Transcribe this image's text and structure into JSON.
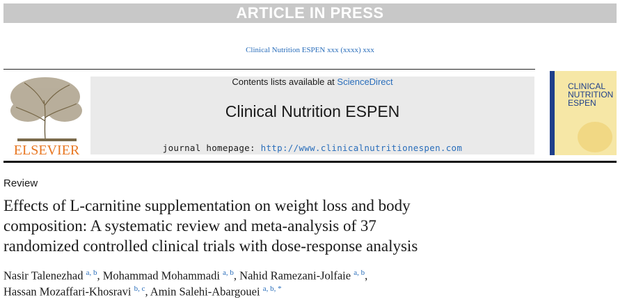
{
  "banner": "ARTICLE IN PRESS",
  "journal_ref": "Clinical Nutrition ESPEN xxx (xxxx) xxx",
  "masthead": {
    "contents_prefix": "Contents lists available at",
    "contents_link": "ScienceDirect",
    "journal_name": "Clinical Nutrition ESPEN",
    "homepage_prefix": "journal homepage:",
    "homepage_url": "http://www.clinicalnutritionespen.com",
    "publisher": "ELSEVIER",
    "cover_title": [
      "CLINICAL",
      "NUTRITION",
      "ESPEN"
    ]
  },
  "article": {
    "type": "Review",
    "title_lines": [
      "Effects of L-carnitine supplementation on weight loss and body",
      "composition: A systematic review and meta-analysis of 37",
      "randomized controlled clinical trials with dose-response analysis"
    ],
    "author_lines": [
      [
        {
          "name": "Nasir Talenezhad",
          "affiliations": "a, b",
          "separator": ","
        },
        {
          "name": "Mohammad Mohammadi",
          "affiliations": "a, b",
          "separator": ","
        },
        {
          "name": "Nahid Ramezani-Jolfaie",
          "affiliations": "a, b",
          "separator": ","
        }
      ],
      [
        {
          "name": "Hassan Mozaffari-Khosravi",
          "affiliations": "b, c",
          "separator": ","
        },
        {
          "name": "Amin Salehi-Abargouei",
          "affiliations": "a, b, *",
          "separator": ""
        }
      ]
    ]
  }
}
